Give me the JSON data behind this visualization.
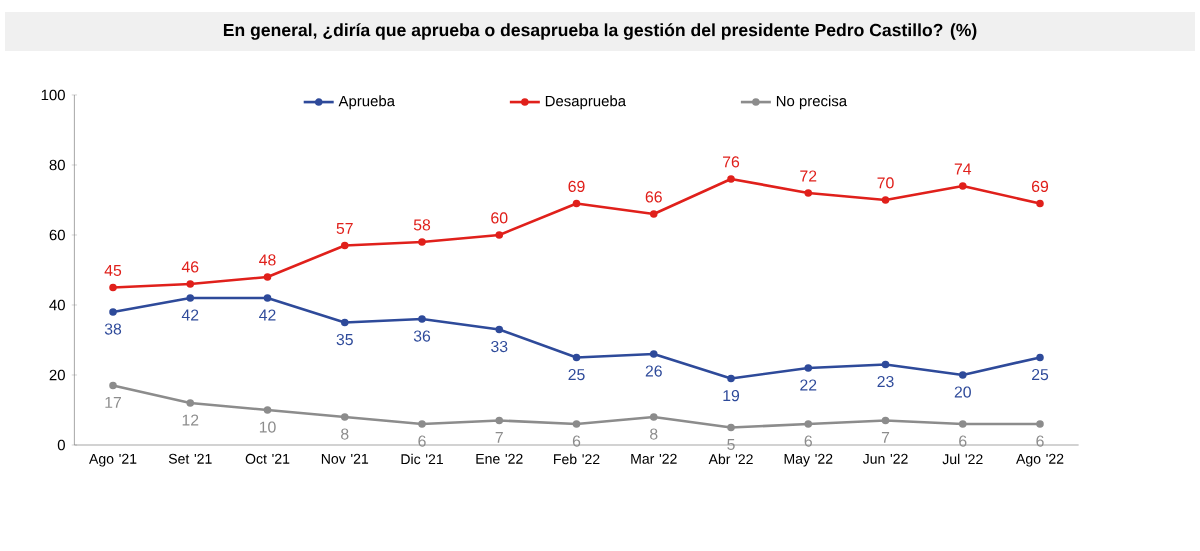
{
  "chart_data": {
    "type": "line",
    "title": "En general, ¿diría que aprueba o desaprueba la gestión del presidente Pedro Castillo? (%)",
    "categories": [
      "Ago '21",
      "Set '21",
      "Oct '21",
      "Nov '21",
      "Dic '21",
      "Ene '22",
      "Feb '22",
      "Mar '22",
      "Abr '22",
      "May '22",
      "Jun '22",
      "Jul '22",
      "Ago '22"
    ],
    "series": [
      {
        "name": "Aprueba",
        "color": "#2e4a9a",
        "values": [
          38,
          42,
          42,
          35,
          36,
          33,
          25,
          26,
          19,
          22,
          23,
          20,
          25
        ]
      },
      {
        "name": "Desaprueba",
        "color": "#e0201b",
        "values": [
          45,
          46,
          48,
          57,
          58,
          60,
          69,
          66,
          76,
          72,
          70,
          74,
          69
        ]
      },
      {
        "name": "No precisa",
        "color": "#8c8c8c",
        "values": [
          17,
          12,
          10,
          8,
          6,
          7,
          6,
          8,
          5,
          6,
          7,
          6,
          6
        ]
      }
    ],
    "ylim": [
      0,
      100
    ],
    "yticks": [
      0,
      20,
      40,
      60,
      80,
      100
    ],
    "grid": false,
    "legend": "top",
    "marker": "circle",
    "line_style": "solid",
    "data_labels": true
  }
}
